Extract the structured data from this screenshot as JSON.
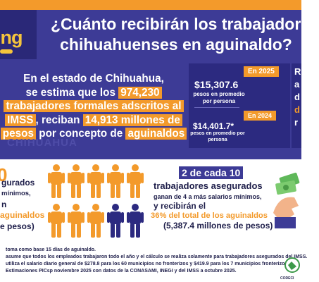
{
  "brand": {
    "logo_text": "ing",
    "accent": "#f39a2b",
    "navy": "#3d3b96",
    "yellow": "#f5c43c",
    "icon": "logo-mark-icon"
  },
  "header": {
    "line1": "¿Cuánto recibirán los trabajadores",
    "line2": "chihuahuenses en aguinaldo?"
  },
  "lead": {
    "p1": "En el estado de Chihuahua,",
    "p2_pre": "se estima que los ",
    "p2_num": "974,230",
    "p3": "trabajadores formales adscritos al",
    "p4_pre": "IMSS",
    "p4_mid": ", reciban ",
    "p4_num": "14,913 millones de",
    "p5_pre": "pesos",
    "p5_mid": " por concepto de ",
    "p5_end": "aguinaldos",
    "watermark": "CHIHUAHUA"
  },
  "stats": {
    "year_2025": "En 2025",
    "amount_2025": "$15,307.6",
    "desc_2025": "pesos en promedio por persona",
    "year_2024": "En 2024",
    "amount_2024": "$14,401.7*",
    "desc_2024": "pesos en promedio por persona"
  },
  "right_edge": {
    "t1": "R",
    "t2": "a",
    "t3": "d",
    "t4": "d",
    "t5": "r"
  },
  "left_block": {
    "num": "0",
    "l1": "gurados",
    "l2": "mínimos,",
    "l3": "n",
    "l4": "aguinaldos",
    "l5": "e pesos)"
  },
  "people": {
    "total": 10,
    "highlighted": 2,
    "color_orange": "#f39a2b",
    "color_navy": "#2c2a80",
    "icon": "person-icon"
  },
  "ratio": {
    "part_a": "2 de cada 10",
    "line1": "trabajadores asegurados",
    "line2": "ganan de 4 a más salarios mínimos,",
    "line3": "y recibirán el",
    "line4": "36% del total de los aguinaldos",
    "line5": "(5,387.4 millones de pesos)"
  },
  "notes": {
    "n1": "toma como base 15 días de aguinaldo.",
    "n2": "asume que todos los empleados trabajaron todo el año y el cálculo se realiza solamente para trabajadores asegurados del IMSS.",
    "n3": "utiliza el salario diario general de $278.8 para los 60 municipios no fronterizos y $419.9 para los 7 municipios fronterizos.",
    "n4": "Estimaciones PICsp noviembre 2025 con datos de la CONASAMI, INEGI y del IMSS a octubre 2025."
  },
  "badge": {
    "label": "CODECI",
    "icon": "codeci-logo-icon"
  }
}
